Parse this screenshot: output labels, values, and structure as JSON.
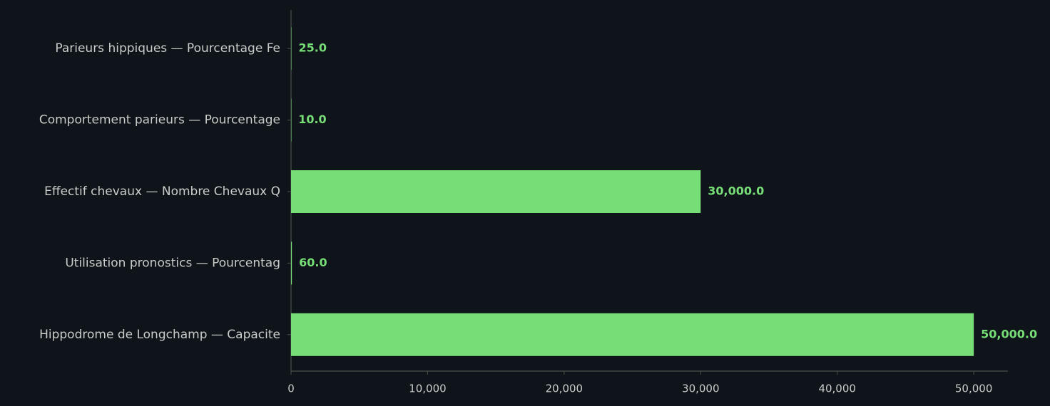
{
  "chart_data": {
    "type": "barh",
    "categories": [
      "Parieurs hippiques — Pourcentage Fe",
      "Comportement parieurs — Pourcentage",
      "Effectif chevaux — Nombre Chevaux Q",
      "Utilisation pronostics — Pourcentag",
      "Hippodrome de Longchamp — Capacite"
    ],
    "values": [
      25,
      10,
      30000,
      60,
      50000
    ],
    "value_labels": [
      "25.0",
      "10.0",
      "30,000.0",
      "60.0",
      "50,000.0"
    ],
    "color": "#77dd77",
    "xlim": [
      0,
      52500
    ],
    "xticks": [
      0,
      {
        "value": 10000,
        "label": "10,000"
      },
      {
        "value": 20000,
        "label": "20,000"
      },
      {
        "value": 30000,
        "label": "30,000"
      },
      {
        "value": 40000,
        "label": "40,000"
      },
      {
        "value": 50000,
        "label": "50,000"
      }
    ]
  }
}
